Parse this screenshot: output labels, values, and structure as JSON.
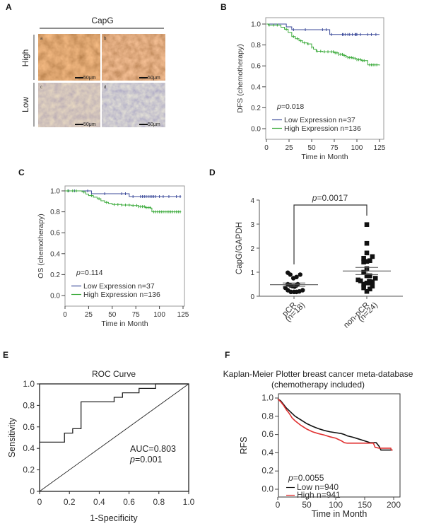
{
  "panels": {
    "A": {
      "letter": "A",
      "title": "CapG",
      "row_labels": [
        "High",
        "Low"
      ],
      "images": [
        {
          "tag": "a",
          "scale_bar": "50μm",
          "stain": "high"
        },
        {
          "tag": "b",
          "scale_bar": "50μm",
          "stain": "high"
        },
        {
          "tag": "c",
          "scale_bar": "50μm",
          "stain": "low"
        },
        {
          "tag": "d",
          "scale_bar": "50μm",
          "stain": "low"
        }
      ]
    },
    "B": {
      "letter": "B"
    },
    "C": {
      "letter": "C"
    },
    "D": {
      "letter": "D"
    },
    "E": {
      "letter": "E"
    },
    "F": {
      "letter": "F"
    }
  },
  "chart_data": [
    {
      "id": "B",
      "type": "line",
      "subtype": "kaplan-meier",
      "title": "",
      "xlabel": "Time in Month",
      "ylabel": "DFS (chemotherapy)",
      "xlim": [
        0,
        125
      ],
      "ylim": [
        0,
        1.0
      ],
      "xticks": [
        "0",
        "25",
        "50",
        "75",
        "100",
        "125"
      ],
      "yticks": [
        "0.0",
        "0.2",
        "0.4",
        "0.6",
        "0.8",
        "1.0"
      ],
      "annotation": "p=0.018",
      "legend_position": "bottom-left",
      "series": [
        {
          "name": "Low  Expression n=37",
          "color": "#3b4a9a",
          "steps": [
            [
              0,
              1.0
            ],
            [
              22,
              1.0
            ],
            [
              22,
              0.973
            ],
            [
              28,
              0.973
            ],
            [
              28,
              0.946
            ],
            [
              70,
              0.946
            ],
            [
              70,
              0.9
            ],
            [
              125,
              0.9
            ]
          ],
          "censors": [
            30,
            43,
            62,
            66,
            72,
            84,
            85,
            87,
            90,
            92,
            95,
            98,
            99,
            100,
            104,
            112,
            116,
            121
          ]
        },
        {
          "name": "High Expression n=136",
          "color": "#3aaa3a",
          "steps": [
            [
              0,
              1.0
            ],
            [
              2,
              0.99
            ],
            [
              15,
              0.99
            ],
            [
              16,
              0.97
            ],
            [
              20,
              0.95
            ],
            [
              24,
              0.92
            ],
            [
              28,
              0.88
            ],
            [
              32,
              0.86
            ],
            [
              36,
              0.84
            ],
            [
              40,
              0.82
            ],
            [
              45,
              0.81
            ],
            [
              50,
              0.78
            ],
            [
              52,
              0.76
            ],
            [
              55,
              0.74
            ],
            [
              62,
              0.735
            ],
            [
              70,
              0.735
            ],
            [
              75,
              0.725
            ],
            [
              80,
              0.71
            ],
            [
              85,
              0.7
            ],
            [
              88,
              0.69
            ],
            [
              90,
              0.68
            ],
            [
              95,
              0.675
            ],
            [
              98,
              0.67
            ],
            [
              100,
              0.66
            ],
            [
              105,
              0.65
            ],
            [
              110,
              0.65
            ],
            [
              112,
              0.61
            ],
            [
              125,
              0.605
            ]
          ],
          "censors": [
            3,
            8,
            12,
            22,
            30,
            34,
            38,
            42,
            46,
            50,
            56,
            60,
            64,
            68,
            72,
            74,
            76,
            78,
            80,
            82,
            84,
            86,
            88,
            90,
            92,
            94,
            96,
            98,
            100,
            102,
            104,
            106,
            108,
            114,
            116,
            118,
            120,
            122
          ]
        }
      ]
    },
    {
      "id": "C",
      "type": "line",
      "subtype": "kaplan-meier",
      "title": "",
      "xlabel": "Time in Month",
      "ylabel": "OS (chemotherapy)",
      "xlim": [
        0,
        125
      ],
      "ylim": [
        0,
        1.0
      ],
      "xticks": [
        "0",
        "25",
        "50",
        "75",
        "100",
        "125"
      ],
      "yticks": [
        "0.0",
        "0.2",
        "0.4",
        "0.6",
        "0.8",
        "1.0"
      ],
      "annotation": "p=0.114",
      "legend_position": "bottom-left",
      "series": [
        {
          "name": "Low  Expression n=37",
          "color": "#3b4a9a",
          "steps": [
            [
              0,
              1.0
            ],
            [
              28,
              1.0
            ],
            [
              28,
              0.973
            ],
            [
              68,
              0.973
            ],
            [
              68,
              0.946
            ],
            [
              123,
              0.946
            ]
          ],
          "censors": [
            4,
            10,
            24,
            42,
            60,
            64,
            72,
            80,
            82,
            84,
            86,
            88,
            90,
            92,
            94,
            96,
            100,
            104,
            110,
            118,
            122
          ]
        },
        {
          "name": "High Expression n=136",
          "color": "#3aaa3a",
          "steps": [
            [
              0,
              1.0
            ],
            [
              16,
              1.0
            ],
            [
              18,
              0.99
            ],
            [
              22,
              0.97
            ],
            [
              25,
              0.955
            ],
            [
              30,
              0.94
            ],
            [
              34,
              0.925
            ],
            [
              38,
              0.905
            ],
            [
              42,
              0.89
            ],
            [
              46,
              0.88
            ],
            [
              50,
              0.87
            ],
            [
              60,
              0.865
            ],
            [
              70,
              0.86
            ],
            [
              78,
              0.85
            ],
            [
              85,
              0.84
            ],
            [
              91,
              0.835
            ],
            [
              92,
              0.8
            ],
            [
              123,
              0.8
            ]
          ],
          "censors": [
            3,
            8,
            12,
            20,
            28,
            36,
            44,
            52,
            56,
            60,
            64,
            68,
            72,
            76,
            78,
            80,
            82,
            84,
            86,
            88,
            90,
            94,
            96,
            98,
            100,
            102,
            104,
            106,
            108,
            110,
            112,
            114,
            116,
            118,
            120,
            122
          ]
        }
      ]
    },
    {
      "id": "D",
      "type": "scatter",
      "subtype": "dot-plot",
      "title": "",
      "xlabel": "",
      "ylabel": "CapG/GAPDH",
      "ylim": [
        0,
        4
      ],
      "yticks": [
        "0",
        "1",
        "2",
        "3",
        "4"
      ],
      "categories": [
        "pCR (n=18)",
        "non-pCR (n=24)"
      ],
      "category_labels": [
        {
          "name": "pCR",
          "n": "(n=18)"
        },
        {
          "name": "non-pCR",
          "n": "(n=24)"
        }
      ],
      "annotation": "p=0.0017",
      "groups": [
        {
          "name": "pCR",
          "marker": "circle",
          "mean": 0.48,
          "sem": 0.07,
          "points": [
            [
              -0.2,
              0.98
            ],
            [
              -0.12,
              0.9
            ],
            [
              0.2,
              0.9
            ],
            [
              0.08,
              0.8
            ],
            [
              -0.02,
              0.75
            ],
            [
              -0.28,
              0.35
            ],
            [
              -0.2,
              0.5
            ],
            [
              -0.12,
              0.45
            ],
            [
              -0.05,
              0.42
            ],
            [
              0.02,
              0.4
            ],
            [
              0.08,
              0.45
            ],
            [
              0.12,
              0.5
            ],
            [
              -0.2,
              0.25
            ],
            [
              -0.1,
              0.18
            ],
            [
              0.0,
              0.18
            ],
            [
              0.08,
              0.18
            ],
            [
              0.17,
              0.2
            ],
            [
              0.28,
              0.25
            ]
          ]
        },
        {
          "name": "non-pCR",
          "marker": "square",
          "mean": 1.05,
          "sem": 0.15,
          "points": [
            [
              0.0,
              2.98
            ],
            [
              0.0,
              2.2
            ],
            [
              0.0,
              1.8
            ],
            [
              0.18,
              1.65
            ],
            [
              -0.1,
              1.58
            ],
            [
              -0.1,
              1.42
            ],
            [
              0.0,
              1.45
            ],
            [
              0.1,
              1.48
            ],
            [
              0.0,
              1.15
            ],
            [
              -0.1,
              1.0
            ],
            [
              0.0,
              0.85
            ],
            [
              0.1,
              0.85
            ],
            [
              -0.28,
              0.68
            ],
            [
              -0.2,
              0.64
            ],
            [
              0.28,
              0.75
            ],
            [
              0.18,
              0.6
            ],
            [
              -0.1,
              0.5
            ],
            [
              0.0,
              0.55
            ],
            [
              0.1,
              0.55
            ],
            [
              0.18,
              0.42
            ],
            [
              -0.1,
              0.35
            ],
            [
              0.1,
              0.3
            ],
            [
              0.0,
              0.2
            ],
            [
              0.08,
              0.62
            ]
          ]
        }
      ]
    },
    {
      "id": "E",
      "type": "line",
      "subtype": "roc",
      "title": "ROC Curve",
      "xlabel": "1-Specificity",
      "ylabel": "Sensitivity",
      "xlim": [
        0,
        1.0
      ],
      "ylim": [
        0,
        1.0
      ],
      "xticks": [
        "0",
        "0.2",
        "0.4",
        "0.6",
        "0.8",
        "1.0"
      ],
      "yticks": [
        "0",
        "0.2",
        "0.4",
        "0.6",
        "0.8",
        "1.0"
      ],
      "annotations": [
        "AUC=0.803",
        "p=0.001"
      ],
      "series": [
        {
          "name": "ROC",
          "color": "#222222",
          "points": [
            [
              0,
              0.458
            ],
            [
              0.167,
              0.458
            ],
            [
              0.167,
              0.542
            ],
            [
              0.222,
              0.542
            ],
            [
              0.222,
              0.583
            ],
            [
              0.278,
              0.583
            ],
            [
              0.278,
              0.833
            ],
            [
              0.5,
              0.833
            ],
            [
              0.5,
              0.875
            ],
            [
              0.556,
              0.875
            ],
            [
              0.556,
              0.917
            ],
            [
              0.667,
              0.917
            ],
            [
              0.667,
              0.958
            ],
            [
              0.778,
              0.958
            ],
            [
              0.778,
              1.0
            ],
            [
              1.0,
              1.0
            ]
          ]
        },
        {
          "name": "reference",
          "color": "#222222",
          "points": [
            [
              0,
              0
            ],
            [
              1,
              1
            ]
          ]
        }
      ]
    },
    {
      "id": "F",
      "type": "line",
      "subtype": "kaplan-meier",
      "title": "Kaplan-Meier Plotter breast cancer meta-database",
      "subtitle": "(chemotherapy included)",
      "xlabel": "Time in Month",
      "ylabel": "RFS",
      "xlim": [
        0,
        200
      ],
      "ylim": [
        0,
        1.0
      ],
      "xticks": [
        "0",
        "50",
        "100",
        "150",
        "200"
      ],
      "yticks": [
        "0.0",
        "0.2",
        "0.4",
        "0.6",
        "0.8",
        "1.0"
      ],
      "annotation": "p=0.0055",
      "legend_position": "bottom-left",
      "series": [
        {
          "name": "Low n=940",
          "color": "#111111",
          "curve": [
            [
              0,
              0.99
            ],
            [
              5,
              0.97
            ],
            [
              10,
              0.93
            ],
            [
              15,
              0.89
            ],
            [
              20,
              0.86
            ],
            [
              25,
              0.83
            ],
            [
              30,
              0.8
            ],
            [
              40,
              0.76
            ],
            [
              50,
              0.72
            ],
            [
              60,
              0.69
            ],
            [
              70,
              0.665
            ],
            [
              80,
              0.645
            ],
            [
              90,
              0.63
            ],
            [
              100,
              0.62
            ],
            [
              110,
              0.61
            ],
            [
              115,
              0.6
            ],
            [
              120,
              0.585
            ],
            [
              130,
              0.57
            ],
            [
              140,
              0.55
            ],
            [
              150,
              0.53
            ],
            [
              160,
              0.51
            ],
            [
              170,
              0.51
            ],
            [
              175,
              0.47
            ],
            [
              178,
              0.43
            ],
            [
              198,
              0.43
            ]
          ]
        },
        {
          "name": "High n=941",
          "color": "#e03030",
          "curve": [
            [
              0,
              0.99
            ],
            [
              5,
              0.96
            ],
            [
              10,
              0.92
            ],
            [
              15,
              0.87
            ],
            [
              20,
              0.83
            ],
            [
              25,
              0.78
            ],
            [
              30,
              0.75
            ],
            [
              40,
              0.7
            ],
            [
              50,
              0.66
            ],
            [
              60,
              0.63
            ],
            [
              70,
              0.61
            ],
            [
              80,
              0.595
            ],
            [
              90,
              0.575
            ],
            [
              100,
              0.56
            ],
            [
              110,
              0.53
            ],
            [
              115,
              0.51
            ],
            [
              120,
              0.505
            ],
            [
              140,
              0.505
            ],
            [
              165,
              0.505
            ],
            [
              168,
              0.46
            ],
            [
              175,
              0.45
            ],
            [
              195,
              0.45
            ],
            [
              196,
              0.43
            ],
            [
              198,
              0.43
            ]
          ]
        }
      ]
    }
  ]
}
